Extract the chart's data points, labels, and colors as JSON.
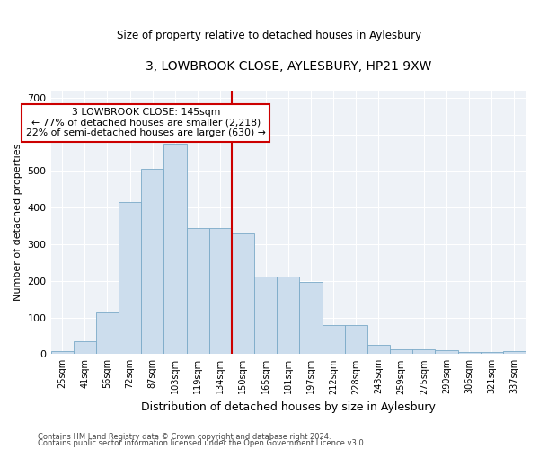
{
  "title": "3, LOWBROOK CLOSE, AYLESBURY, HP21 9XW",
  "subtitle": "Size of property relative to detached houses in Aylesbury",
  "xlabel": "Distribution of detached houses by size in Aylesbury",
  "ylabel": "Number of detached properties",
  "categories": [
    "25sqm",
    "41sqm",
    "56sqm",
    "72sqm",
    "87sqm",
    "103sqm",
    "119sqm",
    "134sqm",
    "150sqm",
    "165sqm",
    "181sqm",
    "197sqm",
    "212sqm",
    "228sqm",
    "243sqm",
    "259sqm",
    "275sqm",
    "290sqm",
    "306sqm",
    "321sqm",
    "337sqm"
  ],
  "values": [
    8,
    35,
    115,
    415,
    507,
    575,
    345,
    345,
    330,
    212,
    212,
    198,
    80,
    80,
    25,
    13,
    13,
    10,
    5,
    5,
    8
  ],
  "bar_color": "#ccdded",
  "bar_edgecolor": "#7aaac8",
  "vline_index": 8,
  "vline_color": "#cc0000",
  "annotation_line1": "3 LOWBROOK CLOSE: 145sqm",
  "annotation_line2": "← 77% of detached houses are smaller (2,218)",
  "annotation_line3": "22% of semi-detached houses are larger (630) →",
  "annotation_box_color": "#cc0000",
  "ylim": [
    0,
    720
  ],
  "yticks": [
    0,
    100,
    200,
    300,
    400,
    500,
    600,
    700
  ],
  "footer1": "Contains HM Land Registry data © Crown copyright and database right 2024.",
  "footer2": "Contains public sector information licensed under the Open Government Licence v3.0.",
  "bg_color": "#eef2f7"
}
